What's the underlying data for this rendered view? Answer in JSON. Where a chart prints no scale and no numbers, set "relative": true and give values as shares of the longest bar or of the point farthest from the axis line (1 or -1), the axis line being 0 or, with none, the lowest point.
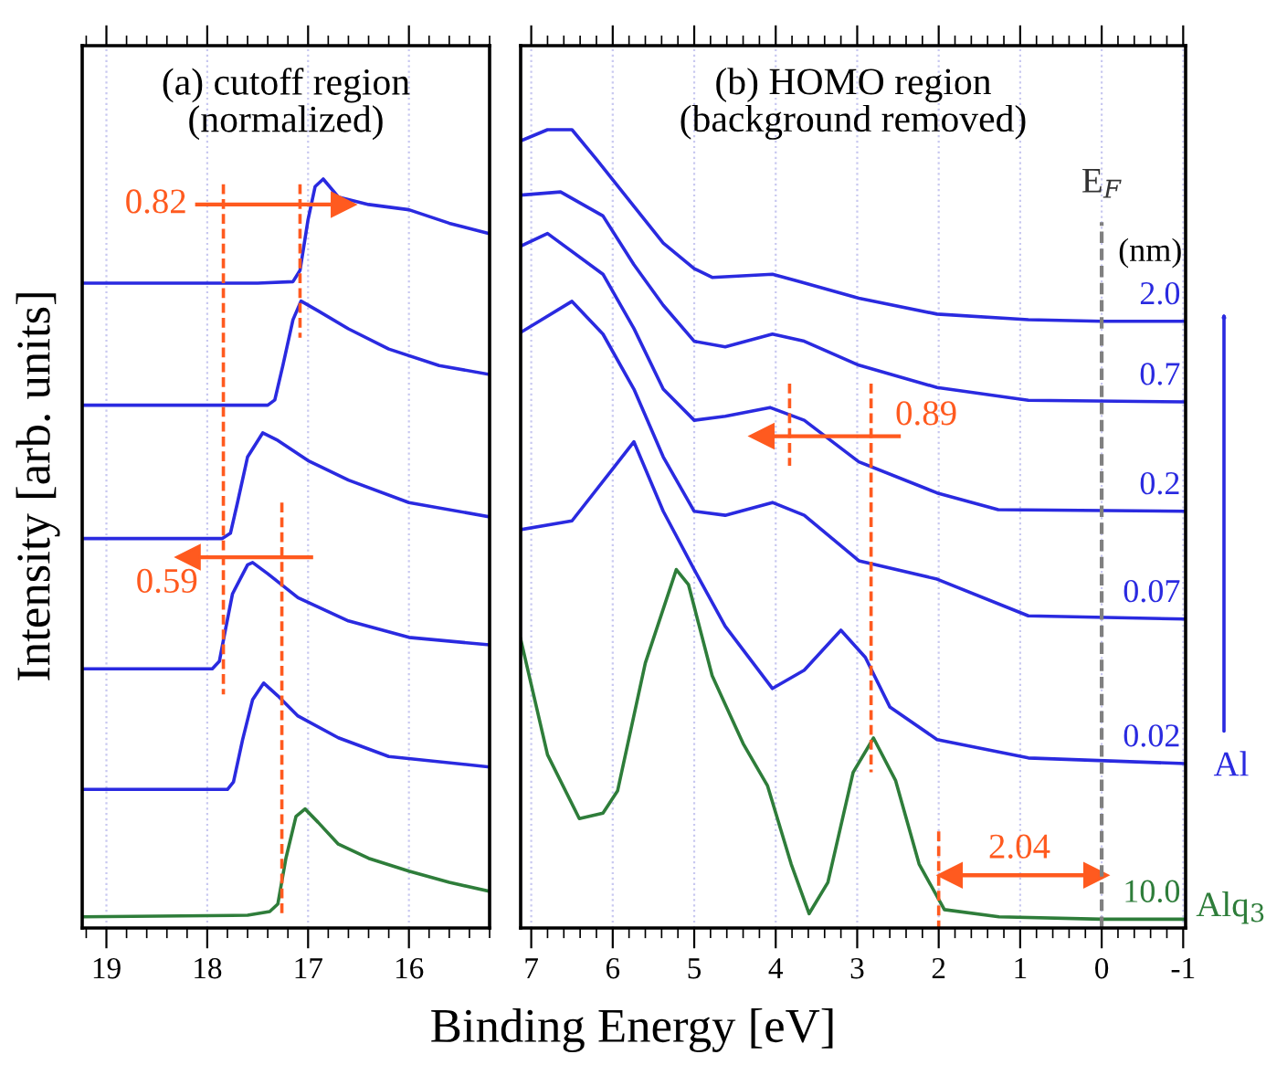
{
  "chart_data": [
    {
      "type": "line",
      "title": "(a) cutoff region\n(normalized)",
      "xlabel": "Binding Energy [eV]",
      "ylabel": "Intensity [arb. units]",
      "xlim": [
        19.24,
        15.2
      ],
      "xticks": [
        19,
        18,
        17,
        16
      ],
      "grid": "x",
      "relative": true,
      "tick_labels": "x",
      "annotations": [
        "0.82",
        "0.59"
      ],
      "series": [
        {
          "color": "#2a2ae0",
          "x": [
            19.24,
            17.5,
            17.15,
            17.08,
            17.0,
            16.93,
            16.85,
            16.7,
            16.4,
            16.0,
            15.6,
            15.2
          ],
          "values": [
            0.861,
            0.861,
            0.863,
            0.878,
            0.946,
            0.99,
            1.0,
            0.976,
            0.966,
            0.959,
            0.941,
            0.927
          ]
        },
        {
          "color": "#2a2ae0",
          "x": [
            19.24,
            17.4,
            17.33,
            17.25,
            17.15,
            17.07,
            16.9,
            16.6,
            16.2,
            15.7,
            15.2
          ],
          "values": [
            0.698,
            0.698,
            0.705,
            0.751,
            0.812,
            0.837,
            0.824,
            0.8,
            0.773,
            0.751,
            0.739
          ]
        },
        {
          "color": "#2a2ae0",
          "x": [
            19.24,
            17.85,
            17.77,
            17.7,
            17.6,
            17.45,
            17.3,
            17.0,
            16.6,
            16.0,
            15.2
          ],
          "values": [
            0.52,
            0.52,
            0.527,
            0.568,
            0.629,
            0.661,
            0.651,
            0.624,
            0.598,
            0.568,
            0.549
          ]
        },
        {
          "color": "#2a2ae0",
          "x": [
            19.24,
            17.95,
            17.88,
            17.82,
            17.75,
            17.6,
            17.55,
            17.4,
            17.1,
            16.6,
            16.0,
            15.2
          ],
          "values": [
            0.346,
            0.346,
            0.356,
            0.398,
            0.446,
            0.485,
            0.488,
            0.473,
            0.441,
            0.41,
            0.388,
            0.378
          ]
        },
        {
          "color": "#2a2ae0",
          "x": [
            19.24,
            17.8,
            17.74,
            17.65,
            17.55,
            17.44,
            17.3,
            17.1,
            16.7,
            16.2,
            15.2
          ],
          "values": [
            0.185,
            0.185,
            0.195,
            0.251,
            0.305,
            0.327,
            0.31,
            0.283,
            0.254,
            0.229,
            0.215
          ]
        },
        {
          "color": "#2e7d3a",
          "x": [
            19.24,
            17.6,
            17.38,
            17.3,
            17.22,
            17.12,
            17.03,
            16.9,
            16.7,
            16.4,
            16.0,
            15.6,
            15.2
          ],
          "values": [
            0.015,
            0.017,
            0.022,
            0.032,
            0.093,
            0.149,
            0.159,
            0.141,
            0.112,
            0.093,
            0.076,
            0.061,
            0.049
          ]
        },
        {
          "color": "#ff5a1f",
          "line_style": "dashed",
          "x": [
            17.84,
            17.84
          ],
          "values": [
            0.993,
            0.312
          ]
        },
        {
          "color": "#ff5a1f",
          "line_style": "dashed",
          "x": [
            17.08,
            17.08
          ],
          "values": [
            0.993,
            0.788
          ]
        },
        {
          "color": "#ff5a1f",
          "line_style": "dashed",
          "x": [
            17.26,
            17.26
          ],
          "values": [
            0.568,
            0.015
          ]
        },
        {
          "color": "#ff5a1f",
          "marker": "triangle",
          "x": [
            18.1,
            16.65
          ],
          "values": [
            0.966,
            0.966
          ]
        },
        {
          "color": "#ff5a1f",
          "marker": "triangle",
          "x": [
            16.97,
            18.19
          ],
          "values": [
            0.495,
            0.495
          ]
        }
      ]
    },
    {
      "type": "line",
      "title": "(b) HOMO region\n(background removed)",
      "xlim": [
        7.13,
        -1.03
      ],
      "xticks": [
        7,
        6,
        5,
        4,
        3,
        2,
        1,
        0,
        -1
      ],
      "grid": "x",
      "relative": true,
      "tick_labels": "x",
      "legend_title": "(nm)",
      "ref_lines": [
        {
          "axis": "x",
          "value": 0,
          "label": "E$_{F}$",
          "color": "#808080",
          "line_style": "dashed"
        }
      ],
      "annotations": [
        "0.89",
        "2.04",
        "Al",
        "Alq$_{3}$"
      ],
      "series": [
        {
          "name": "2.0",
          "color": "#2a2ae0",
          "x": [
            7.13,
            6.8,
            6.5,
            6.2,
            5.74,
            5.38,
            5.0,
            4.78,
            4.04,
            3.72,
            2.98,
            2.02,
            0.9,
            0,
            -1.01
          ],
          "values": [
            0.986,
            1.0,
            1.0,
            0.963,
            0.904,
            0.858,
            0.826,
            0.815,
            0.819,
            0.81,
            0.789,
            0.769,
            0.762,
            0.76,
            0.76
          ]
        },
        {
          "name": "0.7",
          "color": "#2a2ae0",
          "x": [
            7.13,
            6.64,
            6.12,
            5.74,
            5.38,
            5.0,
            4.62,
            4.04,
            3.65,
            2.98,
            2.02,
            0.9,
            -1.01
          ],
          "values": [
            0.918,
            0.922,
            0.892,
            0.831,
            0.78,
            0.735,
            0.728,
            0.744,
            0.735,
            0.705,
            0.677,
            0.661,
            0.659
          ]
        },
        {
          "name": "0.2",
          "color": "#2a2ae0",
          "x": [
            7.13,
            6.8,
            6.12,
            5.74,
            5.38,
            5.0,
            4.62,
            4.07,
            3.65,
            2.98,
            2.02,
            1.27,
            -1.01
          ],
          "values": [
            0.854,
            0.87,
            0.819,
            0.751,
            0.675,
            0.636,
            0.641,
            0.652,
            0.636,
            0.584,
            0.545,
            0.524,
            0.522
          ]
        },
        {
          "name": "0.07",
          "color": "#2a2ae0",
          "x": [
            7.13,
            6.5,
            6.12,
            5.74,
            5.38,
            5.0,
            4.62,
            4.04,
            3.65,
            2.98,
            2.02,
            0.9,
            -1.01
          ],
          "values": [
            0.746,
            0.785,
            0.744,
            0.675,
            0.59,
            0.522,
            0.517,
            0.533,
            0.517,
            0.46,
            0.437,
            0.391,
            0.387
          ]
        },
        {
          "name": "0.02",
          "color": "#2a2ae0",
          "x": [
            7.13,
            6.5,
            5.74,
            5.38,
            5.0,
            4.62,
            4.04,
            3.65,
            3.2,
            2.9,
            2.6,
            2.02,
            0.9,
            -1.01
          ],
          "values": [
            0.499,
            0.51,
            0.609,
            0.522,
            0.449,
            0.378,
            0.3,
            0.323,
            0.373,
            0.339,
            0.277,
            0.236,
            0.213,
            0.206
          ]
        },
        {
          "name": "10.0",
          "color": "#2e7d3a",
          "x": [
            7.13,
            6.8,
            6.41,
            6.12,
            5.94,
            5.6,
            5.22,
            5.07,
            4.78,
            4.4,
            4.1,
            3.81,
            3.59,
            3.36,
            3.05,
            2.8,
            2.53,
            2.24,
            1.93,
            1.26,
            0,
            -1.01
          ],
          "values": [
            0.362,
            0.217,
            0.137,
            0.144,
            0.172,
            0.332,
            0.449,
            0.43,
            0.316,
            0.231,
            0.178,
            0.08,
            0.018,
            0.057,
            0.195,
            0.238,
            0.185,
            0.08,
            0.023,
            0.014,
            0.011,
            0.011
          ]
        },
        {
          "color": "#ff5a1f",
          "line_style": "dashed",
          "x": [
            2.83,
            2.83
          ],
          "values": [
            0.682,
            0.195
          ]
        },
        {
          "color": "#ff5a1f",
          "line_style": "dashed",
          "x": [
            3.83,
            3.83
          ],
          "values": [
            0.682,
            0.579
          ]
        },
        {
          "color": "#ff5a1f",
          "line_style": "dashed",
          "x": [
            2.0,
            2.0
          ],
          "values": [
            0.121,
            0.0
          ]
        },
        {
          "color": "#ff5a1f",
          "marker": "triangle",
          "x": [
            2.49,
            4.17
          ],
          "values": [
            0.616,
            0.616
          ]
        },
        {
          "color": "#ff5a1f",
          "marker": "triangle",
          "x": [
            1.86,
            0.965,
            0.07
          ],
          "values": [
            0.066,
            0.066,
            0.066
          ]
        }
      ]
    }
  ]
}
